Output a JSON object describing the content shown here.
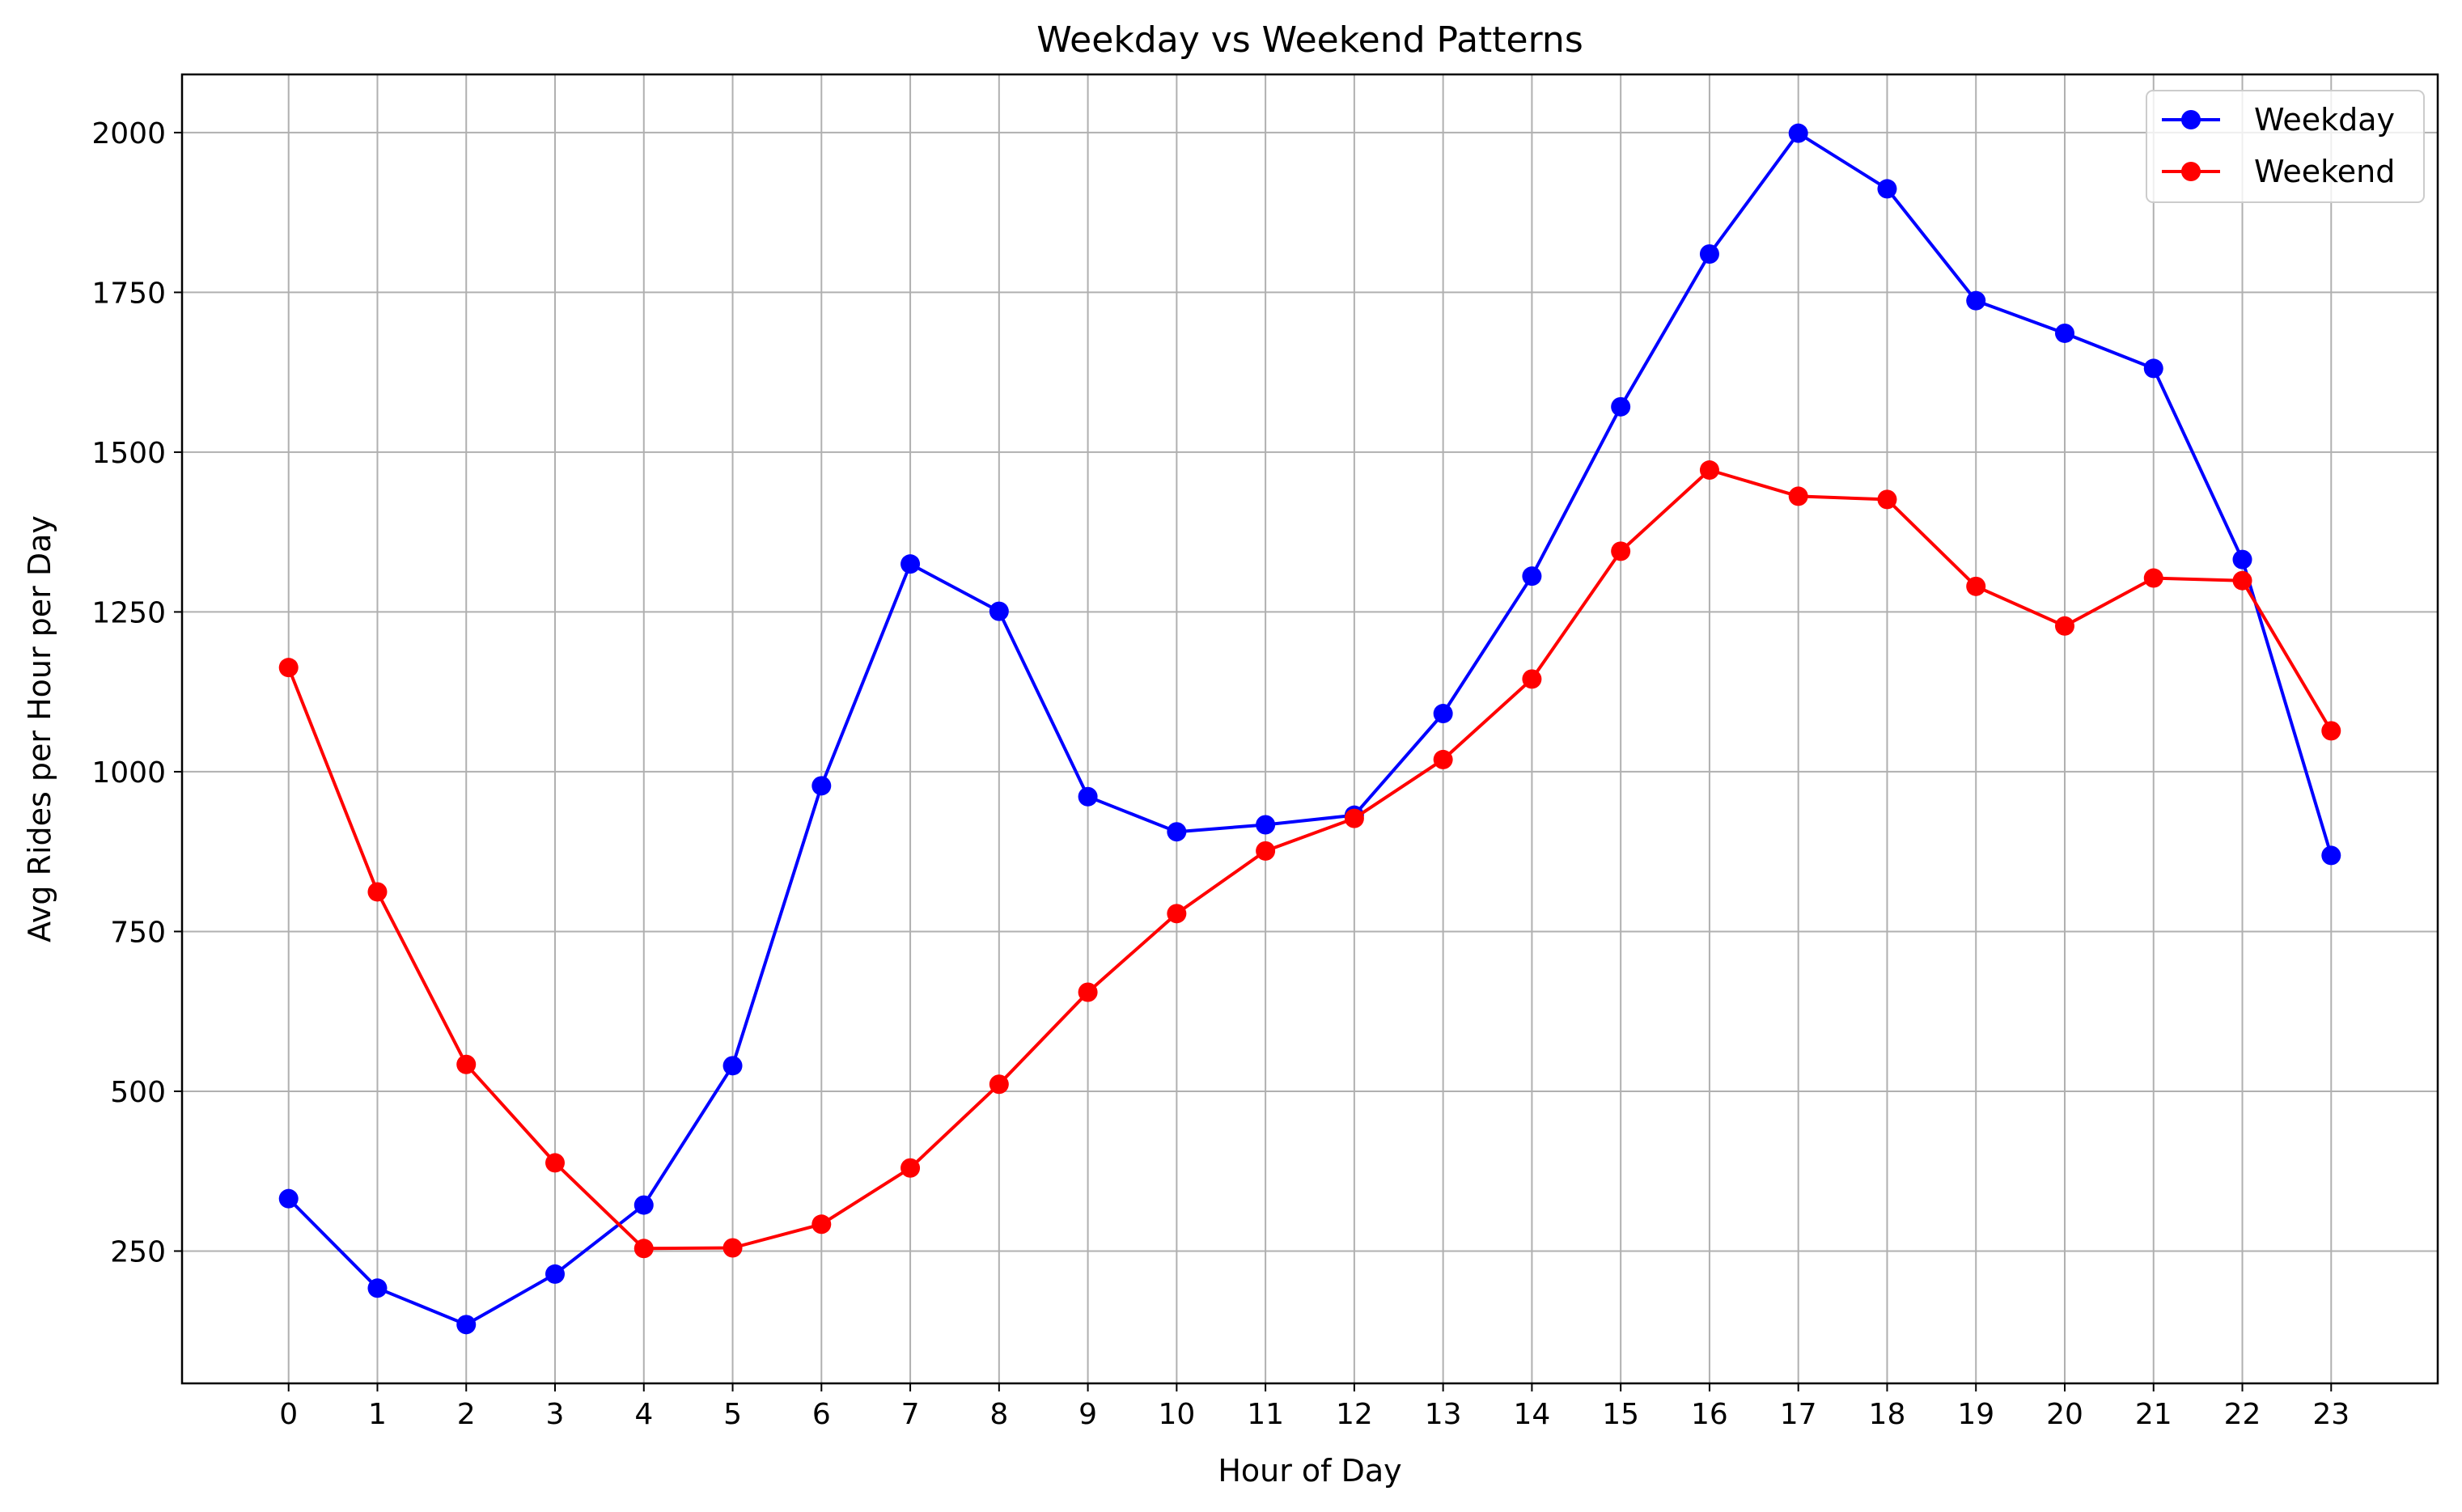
{
  "chart_data": {
    "type": "line",
    "title": "Weekday vs Weekend Patterns",
    "xlabel": "Hour of Day",
    "ylabel": "Avg Rides per Hour per Day",
    "x": [
      0,
      1,
      2,
      3,
      4,
      5,
      6,
      7,
      8,
      9,
      10,
      11,
      12,
      13,
      14,
      15,
      16,
      17,
      18,
      19,
      20,
      21,
      22,
      23
    ],
    "x_tick_labels": [
      "0",
      "1",
      "2",
      "3",
      "4",
      "5",
      "6",
      "7",
      "8",
      "9",
      "10",
      "11",
      "12",
      "13",
      "14",
      "15",
      "16",
      "17",
      "18",
      "19",
      "20",
      "21",
      "22",
      "23"
    ],
    "y_ticks": [
      250,
      500,
      750,
      1000,
      1250,
      1500,
      1750,
      2000
    ],
    "y_tick_labels": [
      "250",
      "500",
      "750",
      "1000",
      "1250",
      "1500",
      "1750",
      "2000"
    ],
    "xlim": [
      -1.2,
      24.2
    ],
    "ylim": [
      43,
      2091
    ],
    "grid": true,
    "legend_position": "top-right",
    "series": [
      {
        "name": "Weekday",
        "color": "#0000ff",
        "marker": "circle",
        "values": [
          332,
          192,
          135,
          214,
          322,
          540,
          978,
          1325,
          1251,
          961,
          906,
          917,
          932,
          1091,
          1306,
          1571,
          1810,
          1999,
          1912,
          1737,
          1686,
          1631,
          1332,
          869
        ]
      },
      {
        "name": "Weekend",
        "color": "#ff0000",
        "marker": "circle",
        "values": [
          1163,
          812,
          542,
          388,
          254,
          255,
          292,
          380,
          511,
          655,
          778,
          876,
          927,
          1019,
          1145,
          1345,
          1472,
          1431,
          1426,
          1290,
          1228,
          1303,
          1299,
          1064
        ]
      }
    ]
  }
}
